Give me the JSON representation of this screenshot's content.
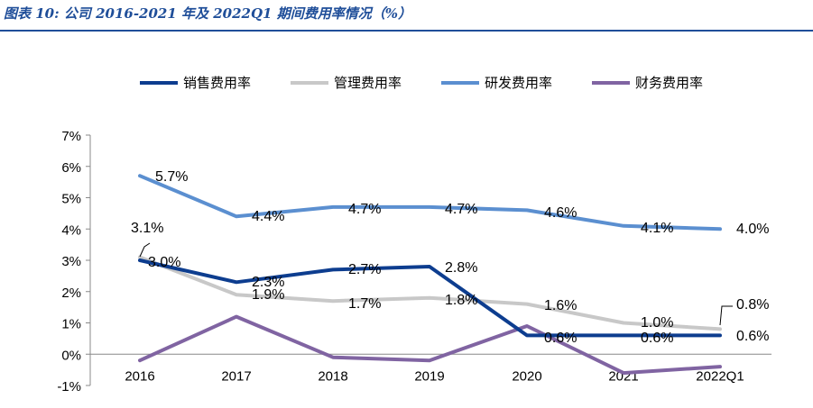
{
  "caption": "图表 10:  公司 2016-2021 年及 2022Q1 期间费用率情况（%）",
  "chart_data": {
    "type": "line",
    "title": "公司 2016-2021 年及 2022Q1 期间费用率情况（%）",
    "categories": [
      "2016",
      "2017",
      "2018",
      "2019",
      "2020",
      "2021",
      "2022Q1"
    ],
    "ylim": [
      -1,
      7
    ],
    "yticks": [
      "-1%",
      "0%",
      "1%",
      "2%",
      "3%",
      "4%",
      "5%",
      "6%",
      "7%"
    ],
    "series": [
      {
        "name": "销售费用率",
        "color": "#0d3d8f",
        "values": [
          3.0,
          2.3,
          2.7,
          2.8,
          0.6,
          0.6,
          0.6
        ],
        "labels": [
          "3.0%",
          "2.3%",
          "2.7%",
          "2.8%",
          "0.6%",
          "0.6%",
          "0.6%"
        ]
      },
      {
        "name": "管理费用率",
        "color": "#c8c8c8",
        "values": [
          3.1,
          1.9,
          1.7,
          1.8,
          1.6,
          1.0,
          0.8
        ],
        "labels": [
          "3.1%",
          "1.9%",
          "1.7%",
          "1.8%",
          "1.6%",
          "1.0%",
          "0.8%"
        ]
      },
      {
        "name": "研发费用率",
        "color": "#5b8fd0",
        "values": [
          5.7,
          4.4,
          4.7,
          4.7,
          4.6,
          4.1,
          4.0
        ],
        "labels": [
          "5.7%",
          "4.4%",
          "4.7%",
          "4.7%",
          "4.6%",
          "4.1%",
          "4.0%"
        ]
      },
      {
        "name": "财务费用率",
        "color": "#8064a2",
        "values": [
          -0.2,
          1.2,
          -0.1,
          -0.2,
          0.9,
          -0.6,
          -0.4
        ],
        "labels": []
      }
    ],
    "legend_position": "top"
  }
}
